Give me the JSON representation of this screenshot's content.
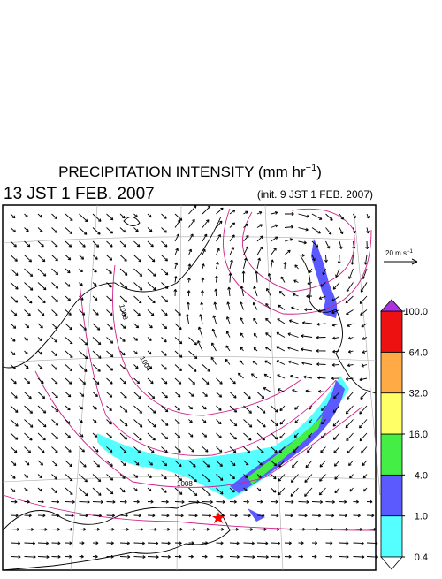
{
  "header": {
    "title": {
      "text": "PRECIPITATION INTENSITY (mm hr",
      "superscript": "−1",
      "suffix": ")"
    },
    "valid_time": "13 JST 1 FEB. 2007",
    "init_time": "(init. 9 JST 1 FEB. 2007)"
  },
  "wind_scale": {
    "text": "20 m s",
    "superscript": "−1"
  },
  "isobar_labels": [
    "1008",
    "1004",
    "1008"
  ],
  "colorbar": {
    "ticks": [
      {
        "value": 0.4,
        "label": "0.4"
      },
      {
        "value": 1,
        "label": "1.0"
      },
      {
        "value": 4,
        "label": "4.0"
      },
      {
        "value": 16,
        "label": "16.0"
      },
      {
        "value": 32,
        "label": "32.0"
      },
      {
        "value": 64,
        "label": "64.0"
      },
      {
        "value": 100,
        "label": "100.0"
      }
    ],
    "colors": [
      "#55ffff",
      "#5a5aff",
      "#44ee44",
      "#ffff66",
      "#ffaa44",
      "#ee1111"
    ],
    "under_color": "#ffffff",
    "over_color": "#aa33dd"
  }
}
